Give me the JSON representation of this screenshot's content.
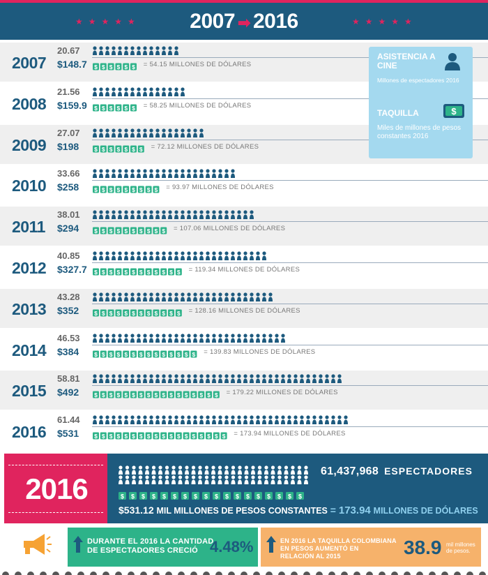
{
  "header": {
    "start_year": "2007",
    "end_year": "2016",
    "arrow": "➡",
    "stars": "★★★★★"
  },
  "colors": {
    "dark_blue": "#1d5a7e",
    "pink": "#e0245e",
    "green": "#2db389",
    "light_blue": "#a4d9ef",
    "orange": "#f6b26b"
  },
  "legend": {
    "attendance_title": "ASISTENCIA A CINE",
    "attendance_subtitle": "Millones de espectadores 2016",
    "boxoffice_title": "TAQUILLA",
    "boxoffice_subtitle": "Miles de millones de pesos constantes 2016",
    "person_icon": "person-icon",
    "money_icon": "dollar-bill-icon"
  },
  "chart_data": {
    "type": "bar",
    "categories": [
      "2007",
      "2008",
      "2009",
      "2010",
      "2011",
      "2012",
      "2013",
      "2014",
      "2015",
      "2016"
    ],
    "series": [
      {
        "name": "Millones de espectadores",
        "values": [
          20.67,
          21.56,
          27.07,
          33.66,
          38.01,
          40.85,
          43.28,
          46.53,
          58.81,
          61.44
        ]
      },
      {
        "name": "Miles de millones de pesos constantes 2016",
        "values": [
          148.7,
          159.9,
          198,
          258,
          294,
          327.7,
          352,
          384,
          492,
          531
        ]
      }
    ],
    "spectators_labels": [
      "20.67",
      "21.56",
      "27.07",
      "33.66",
      "38.01",
      "40.85",
      "43.28",
      "46.53",
      "58.81",
      "61.44"
    ],
    "pesos_labels": [
      "$148.7",
      "$159.9",
      "$198",
      "$258",
      "$294",
      "$327.7",
      "$352",
      "$384",
      "$492",
      "$531"
    ],
    "usd_labels": [
      "= 54.15 MILLONES DE DÓLARES",
      "= 58.25 MILLONES DE DÓLARES",
      "= 72.12 MILLONES DE DÓLARES",
      "= 93.97 MILLONES DE DÓLARES",
      "= 107.06 MILLONES DE DÓLARES",
      "= 119.34 MILLONES DE DÓLARES",
      "= 128.16 MILLONES DE DÓLARES",
      "= 139.83 MILLONES DE DÓLARES",
      "= 179.22 MILLONES DE DÓLARES",
      "= 173.94 MILLONES DE DÓLARES"
    ],
    "usd_values": [
      54.15,
      58.25,
      72.12,
      93.97,
      107.06,
      119.34,
      128.16,
      139.83,
      179.22,
      173.94
    ]
  },
  "summary": {
    "year": "2016",
    "spectators": "61,437,968",
    "spectators_label": "ESPECTADORES",
    "pesos": "$531.12",
    "pesos_label": "MIL MILLONES DE PESOS CONSTANTES",
    "equals": "=",
    "usd": "173.94",
    "usd_label": "MILLONES DE DÓLARES"
  },
  "footer": {
    "growth_text_1": "DURANTE EL 2016 LA CANTIDAD",
    "growth_text_2": "DE ESPECTADORES CRECIÓ",
    "growth_value": "4.48%",
    "boxoffice_text_1": "EN 2016 LA TAQUILLA COLOMBIANA",
    "boxoffice_text_2": "EN PESOS AUMENTÓ EN",
    "boxoffice_text_3": "RELACIÓN AL 2015",
    "boxoffice_value": "38.9",
    "boxoffice_unit_1": "mil millones",
    "boxoffice_unit_2": "de pesos."
  }
}
